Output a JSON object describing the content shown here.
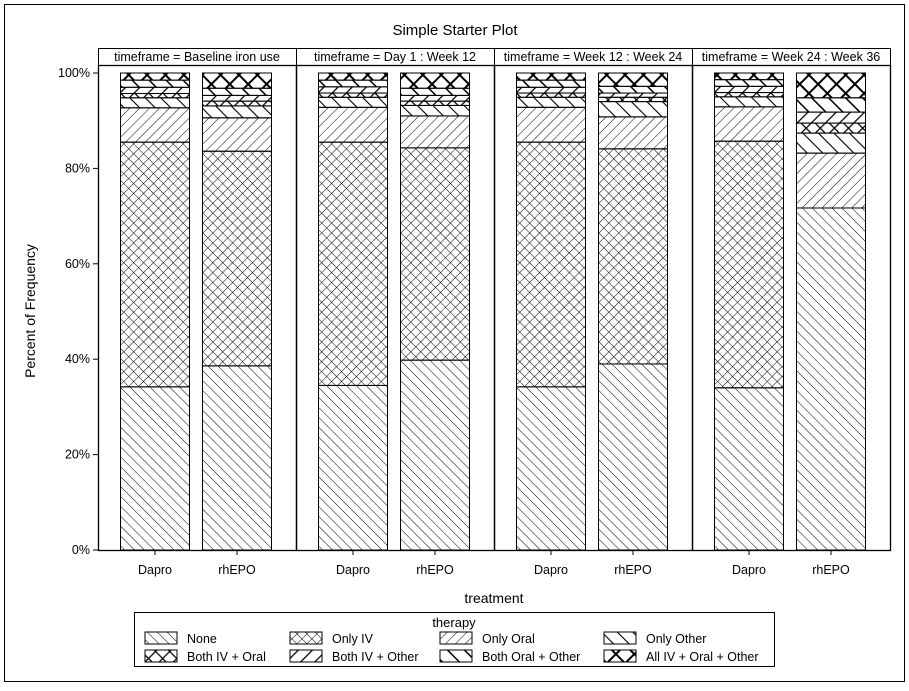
{
  "chart_data": {
    "type": "bar",
    "stacked": true,
    "title": "Simple Starter Plot",
    "xlabel": "treatment",
    "ylabel": "Percent of Frequency",
    "ylim": [
      0,
      100
    ],
    "yticks": [
      "0%",
      "20%",
      "40%",
      "60%",
      "80%",
      "100%"
    ],
    "grid": false,
    "legend": {
      "title": "therapy",
      "placement": "bottom"
    },
    "categories": [
      "Dapro",
      "rhEPO"
    ],
    "series_names": [
      "None",
      "Only IV",
      "Only Oral",
      "Only Other",
      "Both IV + Oral",
      "Both IV + Other",
      "Both Oral + Other",
      "All IV + Oral + Other"
    ],
    "panels": [
      {
        "label": "timeframe = Baseline iron use",
        "bars": [
          {
            "category": "Dapro",
            "values": [
              34.2,
              51.3,
              7.2,
              2.1,
              0.9,
              1.3,
              1.5,
              1.5
            ]
          },
          {
            "category": "rhEPO",
            "values": [
              38.6,
              45.0,
              7.0,
              2.5,
              1.0,
              1.2,
              1.5,
              3.2
            ]
          }
        ]
      },
      {
        "label": "timeframe = Day 1 : Week 12",
        "bars": [
          {
            "category": "Dapro",
            "values": [
              34.5,
              51.0,
              7.3,
              2.1,
              0.9,
              1.3,
              1.4,
              1.5
            ]
          },
          {
            "category": "rhEPO",
            "values": [
              39.8,
              44.5,
              6.7,
              2.2,
              0.9,
              1.2,
              1.5,
              3.2
            ]
          }
        ]
      },
      {
        "label": "timeframe = Week 12 : Week 24",
        "bars": [
          {
            "category": "Dapro",
            "values": [
              34.2,
              51.3,
              7.3,
              2.1,
              0.9,
              1.2,
              1.5,
              1.5
            ]
          },
          {
            "category": "rhEPO",
            "values": [
              39.0,
              45.1,
              6.7,
              3.2,
              0.9,
              0.9,
              1.4,
              2.8
            ]
          }
        ]
      },
      {
        "label": "timeframe = Week 24 : Week 36",
        "bars": [
          {
            "category": "Dapro",
            "values": [
              34.0,
              51.7,
              7.2,
              2.1,
              0.9,
              1.3,
              1.4,
              1.4
            ]
          },
          {
            "category": "rhEPO",
            "values": [
              71.7,
              0.0,
              11.5,
              4.2,
              2.1,
              2.3,
              3.0,
              5.2
            ]
          }
        ]
      }
    ],
    "patterns": [
      "thin-backslash",
      "thin-crosshatch",
      "thin-slash",
      "medium-backslash",
      "bold-crosshatch",
      "bold-slash",
      "bold-backslash",
      "heavy-crosshatch"
    ]
  }
}
